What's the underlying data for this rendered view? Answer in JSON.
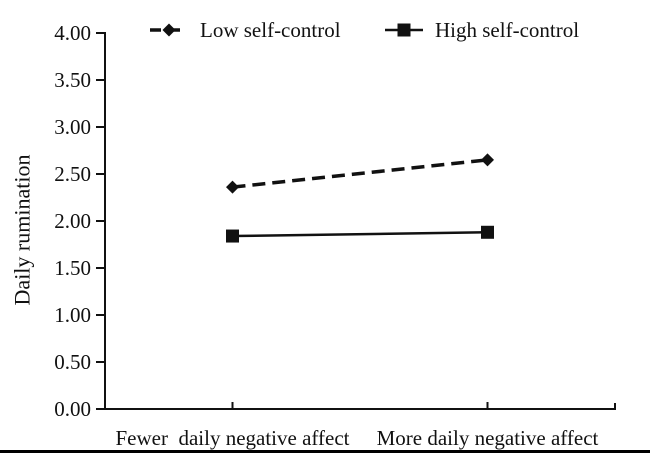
{
  "figure": {
    "bottom_rule_color": "#000000"
  },
  "chart_data": {
    "type": "line",
    "title": "",
    "xlabel": "",
    "ylabel": "Daily rumination",
    "categories": [
      "Fewer  daily negative affect",
      "More daily negative affect"
    ],
    "ylim": [
      0.0,
      4.0
    ],
    "ytick_labels": [
      "4.00",
      "3.50",
      "3.00",
      "2.50",
      "2.00",
      "1.50",
      "1.00",
      "0.50",
      "0.00"
    ],
    "grid": false,
    "legend_position": "top",
    "ink_color": "#111111",
    "series": [
      {
        "name": "Low self-control",
        "values": [
          2.36,
          2.65
        ],
        "line_style": "dashed",
        "marker": "diamond"
      },
      {
        "name": "High self-control",
        "values": [
          1.84,
          1.88
        ],
        "line_style": "solid",
        "marker": "square"
      }
    ]
  }
}
